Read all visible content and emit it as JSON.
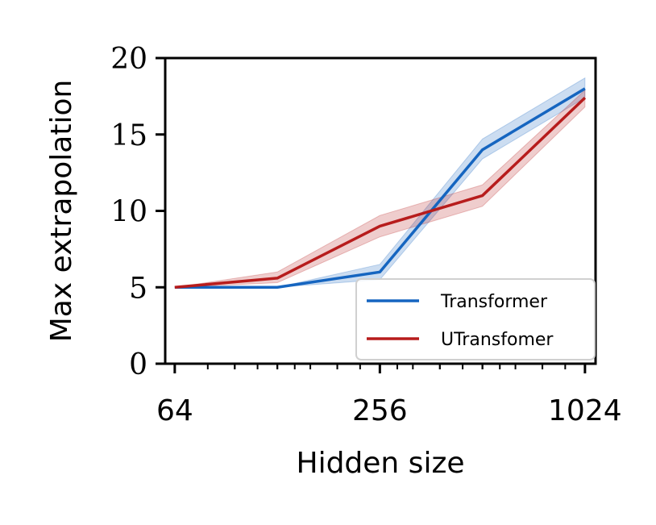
{
  "chart_data": {
    "type": "line",
    "title": "",
    "xlabel": "Hidden size",
    "ylabel": "Max extrapolation",
    "x_scale": "log2",
    "x_ticks": [
      64,
      256,
      1024
    ],
    "x_tick_labels": [
      "64",
      "256",
      "1024"
    ],
    "xlim": [
      60,
      1100
    ],
    "ylim": [
      0,
      20
    ],
    "y_ticks": [
      0,
      5,
      10,
      15,
      20
    ],
    "y_tick_labels": [
      "0",
      "5",
      "10",
      "15",
      "20"
    ],
    "grid": false,
    "legend_position": "bottom-right",
    "x": [
      64,
      128,
      256,
      512,
      1024
    ],
    "series": [
      {
        "name": "Transformer",
        "color": "#1565c0",
        "values": [
          5,
          5,
          6,
          14,
          18
        ],
        "lower": [
          5,
          5,
          5.5,
          13.4,
          17.4
        ],
        "upper": [
          5,
          5,
          6.5,
          14.7,
          18.7
        ]
      },
      {
        "name": "UTransfomer",
        "color": "#b71c1c",
        "values": [
          5,
          5.6,
          9,
          11,
          17.4
        ],
        "lower": [
          5,
          5.3,
          8.3,
          10.3,
          16.8
        ],
        "upper": [
          5,
          6.0,
          9.7,
          11.7,
          17.9
        ]
      }
    ]
  }
}
